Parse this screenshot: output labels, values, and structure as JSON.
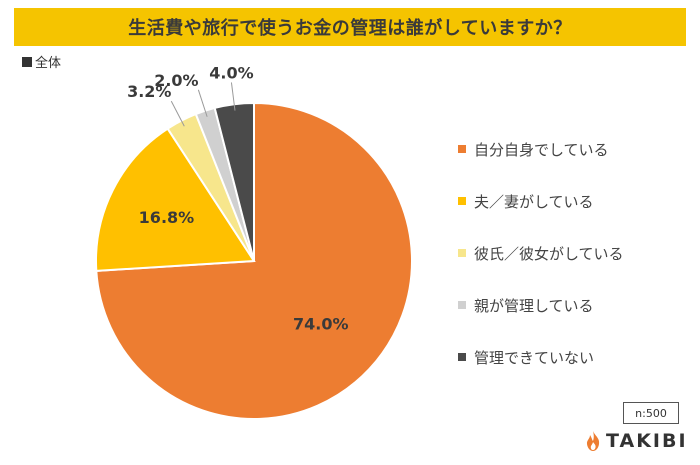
{
  "title": "生活費や旅行で使うお金の管理は誰がしていますか？",
  "subset_label": "全体",
  "sample_size": "n:500",
  "logo_text": "TAKIBI",
  "colors": {
    "title_bar": "#f5c400",
    "slices": [
      "#ed7d31",
      "#ffc000",
      "#f7e68c",
      "#d0d0d0",
      "#4a4a4a"
    ],
    "logo_flame": "#ed7d31"
  },
  "chart_data": {
    "type": "pie",
    "categories": [
      "自分自身でしている",
      "夫／妻がしている",
      "彼氏／彼女がしている",
      "親が管理している",
      "管理できていない"
    ],
    "values": [
      74.0,
      16.8,
      3.2,
      2.0,
      4.0
    ],
    "data_labels": [
      "74.0%",
      "16.8%",
      "3.2%",
      "2.0%",
      "4.0%"
    ],
    "legend_position": "right"
  }
}
